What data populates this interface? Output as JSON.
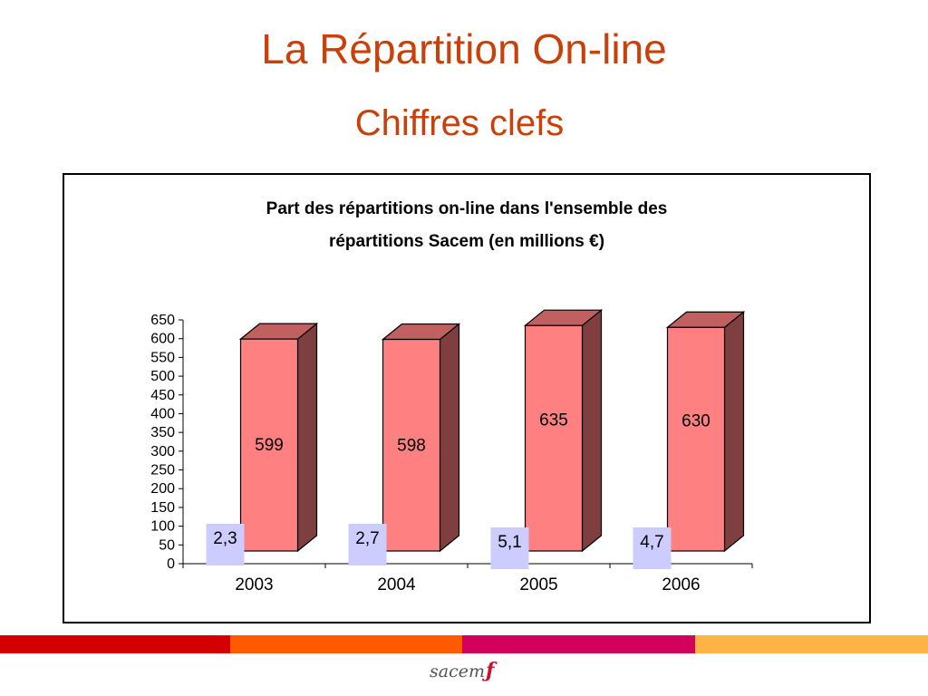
{
  "slide": {
    "title": "La Répartition On-line",
    "subtitle": "Chiffres clefs"
  },
  "chart_data": {
    "type": "bar",
    "title_line1": "Part des répartitions on-line dans l'ensemble des",
    "title_line2": "répartitions Sacem (en millions €)",
    "categories": [
      "2003",
      "2004",
      "2005",
      "2006"
    ],
    "series": [
      {
        "values": [
          2.3,
          2.7,
          5.1,
          4.7
        ],
        "labels": [
          "2,3",
          "2,7",
          "5,1",
          "4,7"
        ],
        "color": "#ccccff"
      },
      {
        "values": [
          599,
          598,
          635,
          630
        ],
        "labels": [
          "599",
          "598",
          "635",
          "630"
        ],
        "color": "#ff8080"
      }
    ],
    "yticks": [
      "0",
      "50",
      "100",
      "150",
      "200",
      "250",
      "300",
      "350",
      "400",
      "450",
      "500",
      "550",
      "600",
      "650"
    ],
    "ylim": [
      0,
      650
    ],
    "grid": false,
    "legend": "none",
    "colors": {
      "front": "#ff8080",
      "side": "#7f3f3f",
      "top": "#c06060",
      "label_bg": "#ccccff"
    }
  },
  "footer": {
    "logo_text": "sacem",
    "logo_mark": "ƒ",
    "stripe_colors": [
      "#d40000",
      "#ff5a00",
      "#d3005c",
      "#ffb347"
    ]
  }
}
